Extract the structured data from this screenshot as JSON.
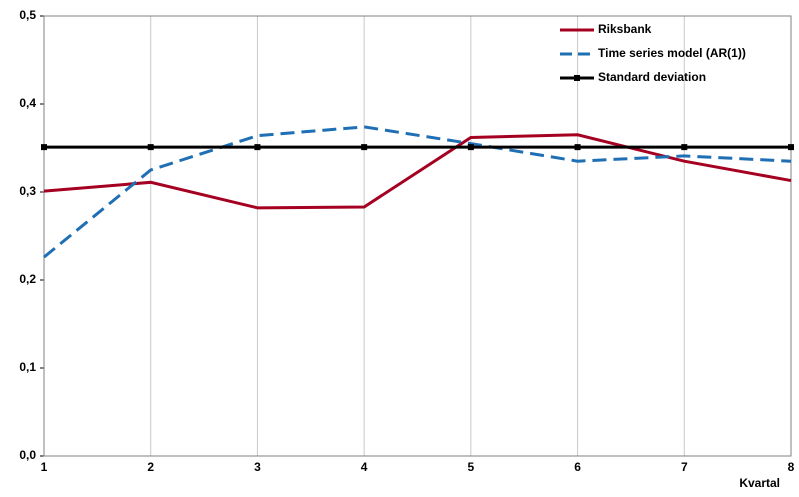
{
  "chart_data": {
    "type": "line",
    "x": [
      1,
      2,
      3,
      4,
      5,
      6,
      7,
      8
    ],
    "x_label": "Kvartal",
    "xlim": [
      1,
      8
    ],
    "xticks": [
      1,
      2,
      3,
      4,
      5,
      6,
      7,
      8
    ],
    "ylim": [
      0,
      0.5
    ],
    "yticks": [
      {
        "value": 0,
        "label": "0,0"
      },
      {
        "value": 0.1,
        "label": "0,1"
      },
      {
        "value": 0.2,
        "label": "0,2"
      },
      {
        "value": 0.3,
        "label": "0,3"
      },
      {
        "value": 0.4,
        "label": "0,4"
      },
      {
        "value": 0.5,
        "label": "0,5"
      }
    ],
    "grid": "x",
    "legend": "top-right",
    "series": [
      {
        "name": "Riksbank",
        "color": "#a50021",
        "style": "solid",
        "values": [
          0.301,
          0.311,
          0.282,
          0.283,
          0.362,
          0.365,
          0.335,
          0.313
        ]
      },
      {
        "name": "Time series model (AR(1))",
        "color": "#1f6fb5",
        "style": "dashed",
        "values": [
          0.226,
          0.325,
          0.364,
          0.374,
          0.355,
          0.335,
          0.341,
          0.335
        ]
      },
      {
        "name": "Standard deviation",
        "color": "#000000",
        "style": "solid",
        "marker": "square",
        "values": [
          0.351,
          0.351,
          0.351,
          0.351,
          0.351,
          0.351,
          0.351,
          0.351
        ]
      }
    ]
  }
}
